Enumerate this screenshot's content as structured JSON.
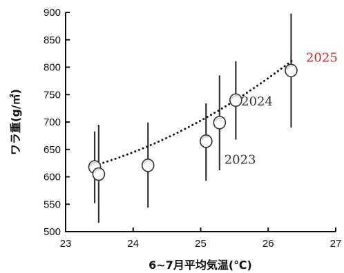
{
  "chart_data": {
    "type": "scatter",
    "xlabel": "6~7月平均気温(℃)",
    "ylabel": "ワラ重(g/㎡)",
    "xlim": [
      23,
      27
    ],
    "ylim": [
      500,
      900
    ],
    "x_ticks": [
      23,
      24,
      25,
      26,
      27
    ],
    "y_ticks": [
      500,
      550,
      600,
      650,
      700,
      750,
      800,
      850,
      900
    ],
    "grid": false,
    "points": [
      {
        "x": 23.43,
        "y": 618,
        "y_low": 552,
        "y_high": 683
      },
      {
        "x": 23.49,
        "y": 605,
        "y_low": 516,
        "y_high": 695
      },
      {
        "x": 24.22,
        "y": 621,
        "y_low": 544,
        "y_high": 699
      },
      {
        "x": 25.08,
        "y": 665,
        "y_low": 593,
        "y_high": 734
      },
      {
        "x": 25.28,
        "y": 699,
        "y_low": 612,
        "y_high": 785
      },
      {
        "x": 25.52,
        "y": 740,
        "y_low": 668,
        "y_high": 811
      },
      {
        "x": 26.34,
        "y": 794,
        "y_low": 690,
        "y_high": 898
      }
    ],
    "trend": {
      "style": "dotted",
      "color": "#111111",
      "x_start": 23.5,
      "x_end": 26.35,
      "coeffs": [
        9.9,
        -427.4,
        5200
      ]
    },
    "annotations": [
      {
        "text": "2025",
        "color": "#c0282d",
        "x": 26.56,
        "y": 810
      },
      {
        "text": "2024",
        "color": "#333333",
        "x": 25.6,
        "y": 730
      },
      {
        "text": "2023",
        "color": "#333333",
        "x": 25.35,
        "y": 624
      }
    ],
    "colors": {
      "axis": "#111111",
      "marker_fill": "#ffffff",
      "marker_stroke": "#333333",
      "errorbar": "#333333"
    }
  }
}
